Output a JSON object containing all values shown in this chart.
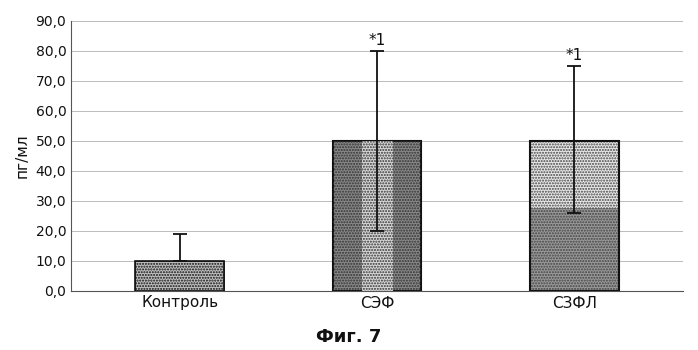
{
  "categories": [
    "Контроль",
    "СЭФ",
    "СЗФЛ"
  ],
  "values": [
    10.0,
    50.0,
    50.0
  ],
  "errors_up": [
    9.0,
    30.0,
    25.0
  ],
  "errors_down": [
    0.0,
    30.0,
    24.0
  ],
  "ylabel": "пг/мл",
  "ylim": [
    0,
    90
  ],
  "yticks": [
    0.0,
    10.0,
    20.0,
    30.0,
    40.0,
    50.0,
    60.0,
    70.0,
    80.0,
    90.0
  ],
  "ytick_labels": [
    "0,0",
    "10,0",
    "20,0",
    "30,0",
    "40,0",
    "50,0",
    "60,0",
    "70,0",
    "80,0",
    "90,0"
  ],
  "annotations": [
    "",
    "*1",
    "*1"
  ],
  "caption": "Фиг. 7",
  "bar_width": 0.45,
  "figsize": [
    6.98,
    3.5
  ],
  "dpi": 100,
  "annotation_offsets": [
    0,
    31,
    26
  ]
}
